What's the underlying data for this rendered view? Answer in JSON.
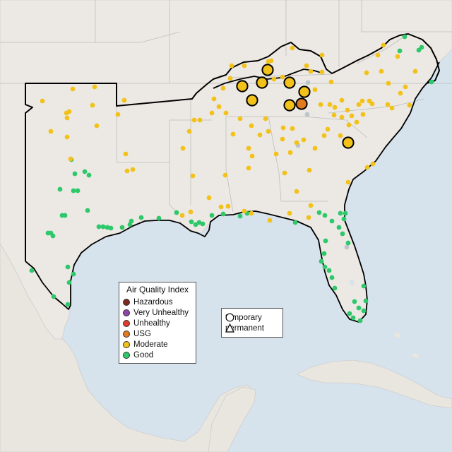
{
  "legend": {
    "title": "Air Quality Index",
    "categories": [
      {
        "label": "Hazardous",
        "color": "#7e2a1f"
      },
      {
        "label": "Very Unhealthy",
        "color": "#8f44a8"
      },
      {
        "label": "Unhealthy",
        "color": "#e03c2c"
      },
      {
        "label": "USG",
        "color": "#e07b20"
      },
      {
        "label": "Moderate",
        "color": "#f2c21a"
      },
      {
        "label": "Good",
        "color": "#2ec86a"
      }
    ]
  },
  "shape_legend": {
    "temporary": "temporary",
    "permanent": "permanent"
  },
  "colors": {
    "ocean": "#d6e2ec",
    "land": "#ece9e4",
    "highlight_region": "#ebe6df",
    "border": "#000000",
    "state_lines": "#bdbdbd",
    "no_data": "#bcc4cc"
  },
  "stations": {
    "temporary_large": [
      {
        "category": "Moderate",
        "x": 343,
        "y": 122
      },
      {
        "category": "Moderate",
        "x": 371,
        "y": 117
      },
      {
        "category": "Moderate",
        "x": 379,
        "y": 99
      },
      {
        "category": "Moderate",
        "x": 410,
        "y": 117
      },
      {
        "category": "Moderate",
        "x": 431,
        "y": 130
      },
      {
        "category": "Moderate",
        "x": 357,
        "y": 142
      },
      {
        "category": "Moderate",
        "x": 410,
        "y": 149
      },
      {
        "category": "USG",
        "x": 427,
        "y": 147
      },
      {
        "category": "Moderate",
        "x": 493,
        "y": 202
      }
    ],
    "moderate_small": [
      [
        60,
        143
      ],
      [
        103,
        126
      ],
      [
        134,
        123
      ],
      [
        176,
        142
      ],
      [
        94,
        160
      ],
      [
        98,
        158
      ],
      [
        95,
        167
      ],
      [
        131,
        149
      ],
      [
        167,
        162
      ],
      [
        72,
        186
      ],
      [
        95,
        194
      ],
      [
        137,
        178
      ],
      [
        178,
        218
      ],
      [
        100,
        225
      ],
      [
        180,
        242
      ],
      [
        188,
        240
      ],
      [
        275,
        170
      ],
      [
        283,
        170
      ],
      [
        268,
        186
      ],
      [
        310,
        151
      ],
      [
        300,
        160
      ],
      [
        320,
        160
      ],
      [
        303,
        140
      ],
      [
        316,
        125
      ],
      [
        326,
        111
      ],
      [
        328,
        93
      ],
      [
        346,
        93
      ],
      [
        384,
        86
      ],
      [
        380,
        87
      ],
      [
        388,
        112
      ],
      [
        400,
        109
      ],
      [
        414,
        68
      ],
      [
        434,
        93
      ],
      [
        440,
        101
      ],
      [
        456,
        78
      ],
      [
        456,
        102
      ],
      [
        469,
        116
      ],
      [
        446,
        127
      ],
      [
        454,
        148
      ],
      [
        467,
        148
      ],
      [
        474,
        152
      ],
      [
        484,
        142
      ],
      [
        473,
        163
      ],
      [
        492,
        156
      ],
      [
        498,
        164
      ],
      [
        508,
        148
      ],
      [
        513,
        143
      ],
      [
        523,
        143
      ],
      [
        527,
        147
      ],
      [
        549,
        148
      ],
      [
        555,
        153
      ],
      [
        580,
        149
      ],
      [
        574,
        123
      ],
      [
        588,
        101
      ],
      [
        540,
        101
      ],
      [
        519,
        103
      ],
      [
        535,
        78
      ],
      [
        543,
        64
      ],
      [
        563,
        80
      ],
      [
        514,
        162
      ],
      [
        505,
        173
      ],
      [
        494,
        177
      ],
      [
        482,
        192
      ],
      [
        484,
        166
      ],
      [
        464,
        183
      ],
      [
        459,
        192
      ],
      [
        446,
        210
      ],
      [
        430,
        198
      ],
      [
        420,
        202
      ],
      [
        411,
        216
      ],
      [
        438,
        241
      ],
      [
        414,
        182
      ],
      [
        401,
        181
      ],
      [
        400,
        197
      ],
      [
        391,
        218
      ],
      [
        403,
        245
      ],
      [
        420,
        271
      ],
      [
        440,
        291
      ],
      [
        410,
        302
      ],
      [
        437,
        308
      ],
      [
        356,
        178
      ],
      [
        352,
        210
      ],
      [
        357,
        221
      ],
      [
        352,
        238
      ],
      [
        376,
        168
      ],
      [
        368,
        191
      ],
      [
        380,
        186
      ],
      [
        340,
        168
      ],
      [
        330,
        190
      ],
      [
        319,
        248
      ],
      [
        296,
        280
      ],
      [
        273,
        249
      ],
      [
        313,
        293
      ],
      [
        259,
        210
      ],
      [
        258,
        305
      ],
      [
        270,
        300
      ],
      [
        346,
        299
      ],
      [
        356,
        302
      ],
      [
        382,
        312
      ],
      [
        323,
        292
      ],
      [
        520,
        237
      ],
      [
        528,
        232
      ],
      [
        493,
        258
      ],
      [
        567,
        132
      ],
      [
        550,
        118
      ]
    ],
    "good_small": [
      [
        101,
        226
      ],
      [
        120,
        243
      ],
      [
        126,
        248
      ],
      [
        106,
        246
      ],
      [
        85,
        268
      ],
      [
        104,
        270
      ],
      [
        110,
        270
      ],
      [
        88,
        305
      ],
      [
        92,
        305
      ],
      [
        124,
        298
      ],
      [
        140,
        321
      ],
      [
        146,
        321
      ],
      [
        152,
        322
      ],
      [
        157,
        323
      ],
      [
        173,
        322
      ],
      [
        184,
        318
      ],
      [
        186,
        313
      ],
      [
        200,
        308
      ],
      [
        225,
        309
      ],
      [
        250,
        301
      ],
      [
        271,
        314
      ],
      [
        277,
        318
      ],
      [
        282,
        315
      ],
      [
        287,
        317
      ],
      [
        300,
        305
      ],
      [
        316,
        303
      ],
      [
        340,
        306
      ],
      [
        350,
        302
      ],
      [
        418,
        315
      ],
      [
        452,
        301
      ],
      [
        460,
        305
      ],
      [
        470,
        313
      ],
      [
        482,
        302
      ],
      [
        487,
        310
      ],
      [
        480,
        322
      ],
      [
        485,
        331
      ],
      [
        461,
        341
      ],
      [
        493,
        344
      ],
      [
        455,
        370
      ],
      [
        460,
        378
      ],
      [
        466,
        383
      ],
      [
        470,
        393
      ],
      [
        474,
        408
      ],
      [
        515,
        405
      ],
      [
        502,
        427
      ],
      [
        508,
        436
      ],
      [
        515,
        440
      ],
      [
        518,
        426
      ],
      [
        510,
        454
      ],
      [
        500,
        450
      ],
      [
        495,
        444
      ],
      [
        68,
        330
      ],
      [
        72,
        330
      ],
      [
        75,
        334
      ],
      [
        45,
        383
      ],
      [
        96,
        378
      ],
      [
        104,
        388
      ],
      [
        98,
        400
      ],
      [
        76,
        420
      ],
      [
        96,
        431
      ],
      [
        566,
        72
      ],
      [
        593,
        71
      ],
      [
        597,
        67
      ],
      [
        611,
        116
      ],
      [
        573,
        52
      ],
      [
        489,
        302
      ],
      [
        459,
        359
      ]
    ],
    "no_data_small": [
      [
        422,
        206
      ],
      [
        491,
        350
      ],
      [
        435,
        162
      ],
      [
        436,
        117
      ]
    ]
  }
}
